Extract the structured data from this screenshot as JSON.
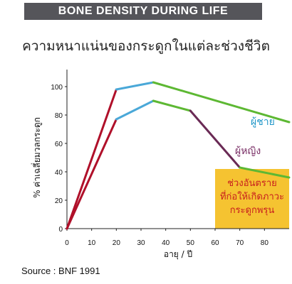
{
  "header": {
    "banner": "BONE DENSITY DURING LIFE",
    "subtitle": "ความหนาแน่นของกระดูกในแต่ละช่วงชีวิต",
    "source": "Source : BNF 1991"
  },
  "chart_data": {
    "type": "line",
    "xlabel": "อายุ / ปี",
    "ylabel": "% ค่าเฉลี่ยมวลกระดูก",
    "xlim": [
      0,
      90
    ],
    "ylim": [
      0,
      110
    ],
    "xticks": [
      0,
      10,
      20,
      30,
      40,
      50,
      60,
      70,
      80
    ],
    "yticks": [
      0,
      20,
      40,
      60,
      80,
      100
    ],
    "grid": false,
    "series": [
      {
        "name": "ผู้ชาย",
        "points": [
          [
            0,
            0
          ],
          [
            20,
            98
          ],
          [
            35,
            103
          ],
          [
            90,
            75
          ]
        ],
        "segment_colors": [
          "#b0102a",
          "#4aa8d8",
          "#5db833"
        ]
      },
      {
        "name": "ผู้หญิง",
        "points": [
          [
            0,
            0
          ],
          [
            20,
            77
          ],
          [
            35,
            90
          ],
          [
            50,
            83
          ],
          [
            70,
            43
          ],
          [
            90,
            36
          ]
        ],
        "segment_colors": [
          "#b0102a",
          "#4aa8d8",
          "#5db833",
          "#6a2a55",
          "#5db833"
        ]
      }
    ],
    "annotation": {
      "text": [
        "ช่วงอันตราย",
        "ที่ก่อให้เกิดภาวะ",
        "กระดูกพรุน"
      ],
      "x_range": [
        60,
        90
      ],
      "y_range": [
        0,
        42
      ],
      "color": "#f5c331"
    },
    "colors": {
      "male_label": "#1f96c8",
      "female_label": "#7a2f66",
      "danger_text": "#c81e1e"
    }
  }
}
